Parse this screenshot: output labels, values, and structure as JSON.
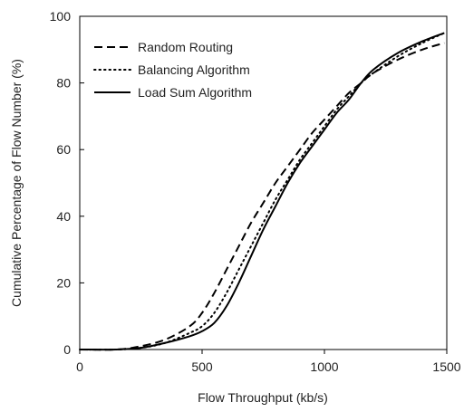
{
  "chart_data": {
    "type": "line",
    "title": "",
    "xlabel": "Flow Throughput (kb/s)",
    "ylabel": "Cumulative Percentage of Flow Number (%)",
    "xlim": [
      0,
      1500
    ],
    "ylim": [
      0,
      100
    ],
    "xticks": [
      0,
      500,
      1000,
      1500
    ],
    "yticks": [
      0,
      20,
      40,
      60,
      80,
      100
    ],
    "grid": false,
    "legend_position": "top-left",
    "series": [
      {
        "name": "Random Routing",
        "line_style": "dashed",
        "color": "#000000",
        "x": [
          0,
          150,
          250,
          350,
          450,
          500,
          550,
          600,
          650,
          700,
          750,
          800,
          850,
          900,
          950,
          1000,
          1050,
          1100,
          1150,
          1200,
          1300,
          1400,
          1490
        ],
        "y": [
          0,
          0,
          1,
          3,
          7,
          11,
          17,
          24,
          31,
          38,
          44,
          50,
          55,
          60,
          65,
          69,
          73,
          77,
          80,
          83,
          87,
          90,
          92
        ]
      },
      {
        "name": "Balancing Algorithm",
        "line_style": "dotted",
        "color": "#000000",
        "x": [
          0,
          150,
          250,
          350,
          450,
          500,
          550,
          600,
          650,
          700,
          750,
          800,
          850,
          900,
          950,
          1000,
          1050,
          1100,
          1150,
          1200,
          1300,
          1400,
          1490
        ],
        "y": [
          0,
          0,
          0.5,
          2,
          5,
          7,
          11,
          17,
          24,
          31,
          38,
          45,
          51,
          57,
          62,
          67,
          72,
          76,
          80,
          83,
          88,
          92,
          95
        ]
      },
      {
        "name": "Load Sum Algorithm",
        "line_style": "solid",
        "color": "#000000",
        "x": [
          0,
          150,
          250,
          350,
          450,
          500,
          550,
          600,
          650,
          700,
          750,
          800,
          850,
          900,
          950,
          1000,
          1050,
          1100,
          1150,
          1200,
          1300,
          1400,
          1490
        ],
        "y": [
          0,
          0,
          0.5,
          2,
          4,
          5.5,
          8,
          13,
          20,
          28,
          36,
          43,
          50,
          56,
          61,
          66,
          71,
          75,
          80,
          84,
          89,
          92.5,
          95
        ]
      }
    ]
  }
}
